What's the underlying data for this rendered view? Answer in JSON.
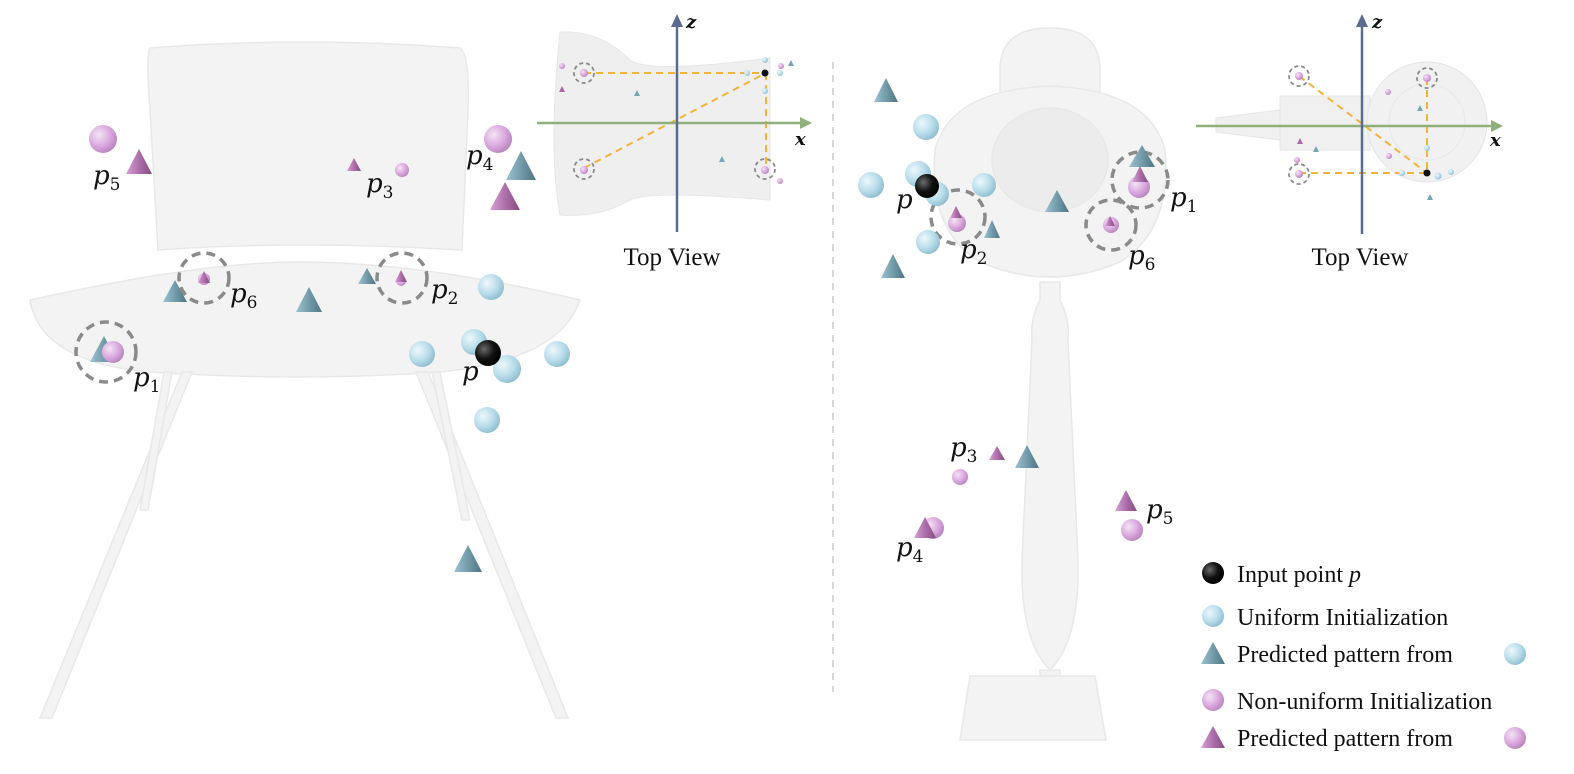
{
  "colors": {
    "uniform": "#b7dcea",
    "uniform_predicted": "#7aa5b6",
    "nonuniform": "#d9a7dd",
    "nonuniform_predicted": "#a96aa6",
    "input_point": "#111111",
    "guide_lines": "#f0b43a",
    "x_axis": "#8fb07a",
    "z_axis": "#5a6a92",
    "highlight_circle": "#8a8a8a"
  },
  "chair": {
    "labels": {
      "p1": {
        "base": "p",
        "sub": "1"
      },
      "p2": {
        "base": "p",
        "sub": "2"
      },
      "p3": {
        "base": "p",
        "sub": "3"
      },
      "p4": {
        "base": "p",
        "sub": "4"
      },
      "p5": {
        "base": "p",
        "sub": "5"
      },
      "p6": {
        "base": "p",
        "sub": "6"
      },
      "p": "p"
    },
    "top_view": {
      "caption": "Top View",
      "x_label": "x",
      "z_label": "z"
    }
  },
  "lamp": {
    "labels": {
      "p1": {
        "base": "p",
        "sub": "1"
      },
      "p2": {
        "base": "p",
        "sub": "2"
      },
      "p3": {
        "base": "p",
        "sub": "3"
      },
      "p4": {
        "base": "p",
        "sub": "4"
      },
      "p5": {
        "base": "p",
        "sub": "5"
      },
      "p6": {
        "base": "p",
        "sub": "6"
      },
      "p": "p"
    },
    "top_view": {
      "caption": "Top View",
      "x_label": "x",
      "z_label": "z"
    }
  },
  "legend": {
    "input_point": {
      "text": "Input point",
      "symbol": "p"
    },
    "uniform": "Uniform Initialization",
    "uniform_predicted": "Predicted pattern from",
    "nonuniform": "Non-uniform Initialization",
    "nonuniform_predicted": "Predicted pattern from"
  }
}
